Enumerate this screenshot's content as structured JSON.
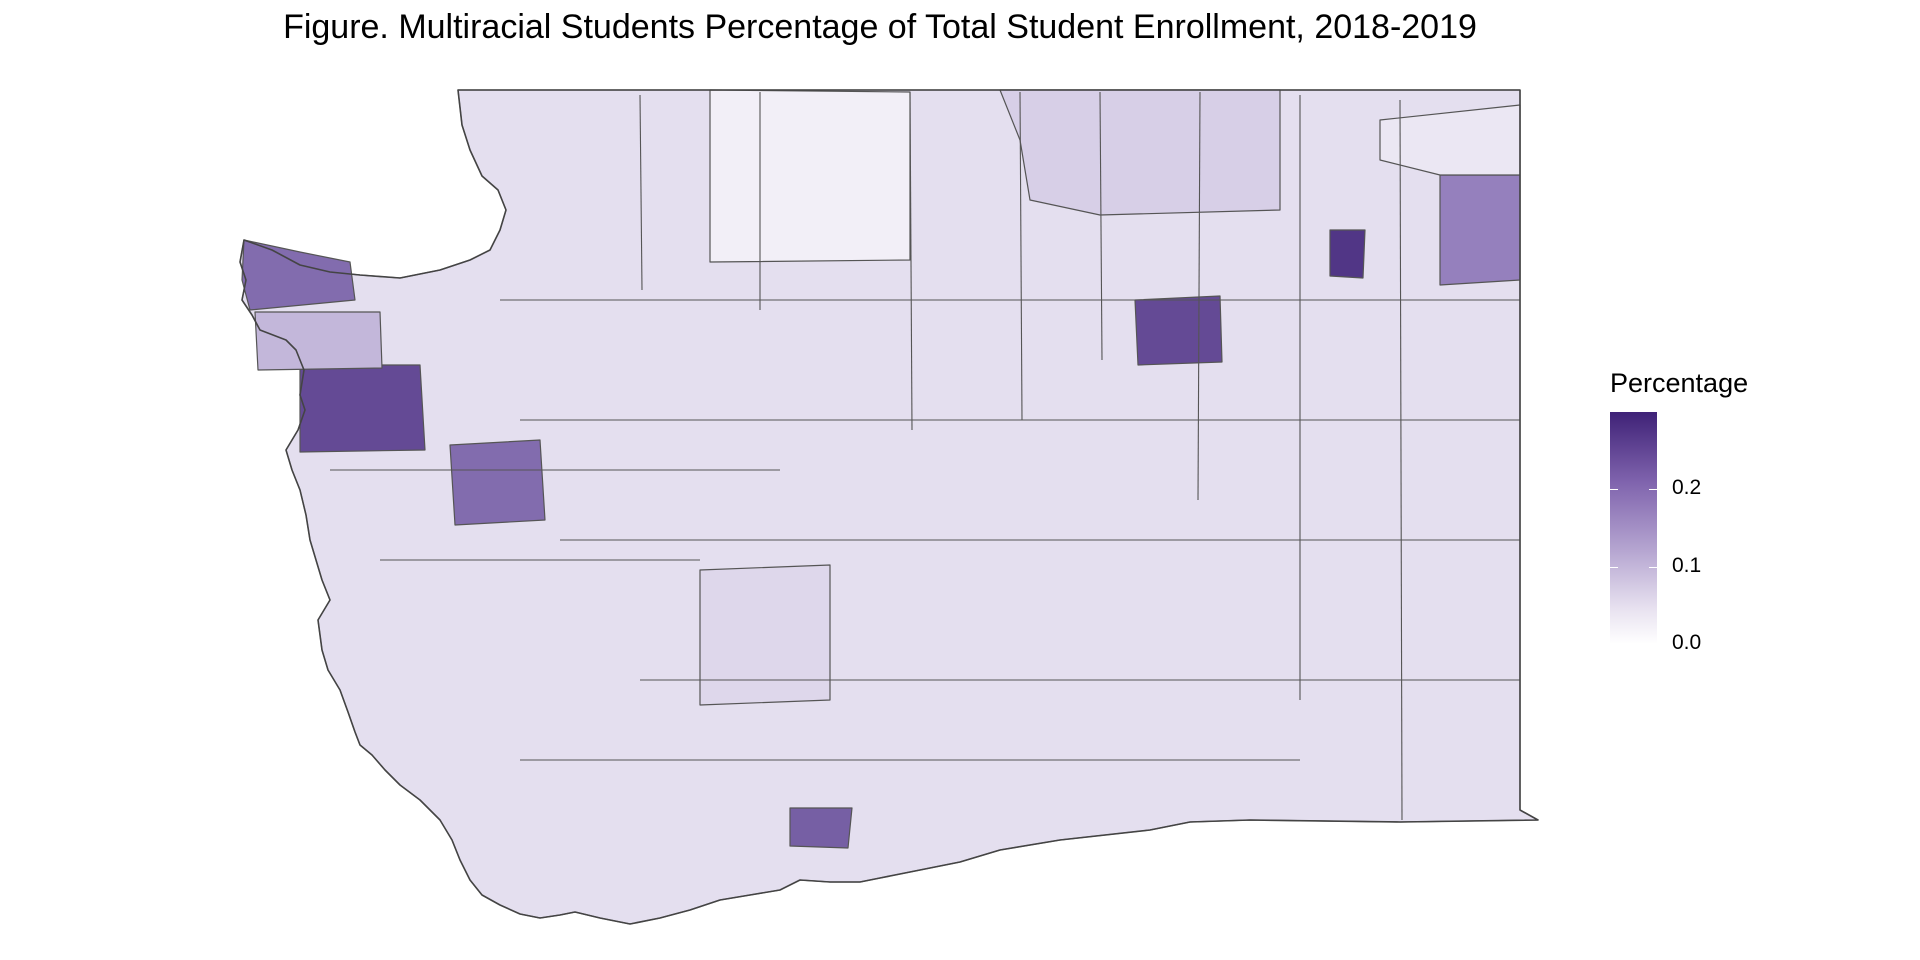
{
  "title": "Figure. Multiracial Students Percentage of Total Student Enrollment, 2018-2019",
  "legend": {
    "title": "Percentage",
    "breaks": [
      {
        "value": 0.2,
        "label": "0.2"
      },
      {
        "value": 0.1,
        "label": "0.1"
      },
      {
        "value": 0.0,
        "label": "0.0"
      }
    ],
    "range": [
      0,
      0.3
    ],
    "colors": {
      "high": "#3f2277",
      "mid": "#9b87c2",
      "low": "#ffffff"
    }
  },
  "map": {
    "region": "Washington State school districts",
    "border_color": "#555555",
    "districts": [
      {
        "id": "ne-1",
        "value": 0.06
      },
      {
        "id": "ne-2",
        "value": 0.16
      },
      {
        "id": "ne-3",
        "value": 0.03
      },
      {
        "id": "cen-1",
        "value": 0.02
      },
      {
        "id": "nw-1",
        "value": 0.19
      },
      {
        "id": "nw-2",
        "value": 0.24
      },
      {
        "id": "nw-3",
        "value": 0.09
      },
      {
        "id": "sw-1",
        "value": 0.19
      },
      {
        "id": "sc-1",
        "value": 0.05
      },
      {
        "id": "sc-2",
        "value": 0.21
      },
      {
        "id": "e-1",
        "value": 0.24
      },
      {
        "id": "e-2",
        "value": 0.27
      }
    ]
  }
}
